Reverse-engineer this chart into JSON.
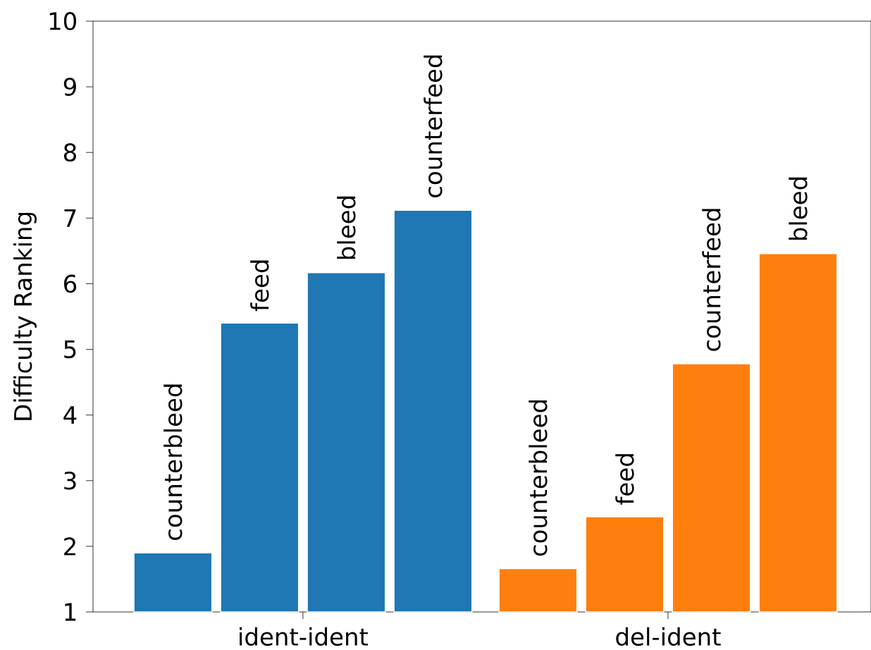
{
  "chart_data": {
    "type": "bar",
    "ylabel": "Difficulty Ranking",
    "categories": [
      "ident-ident",
      "del-ident"
    ],
    "series": [
      {
        "colors": [
          "#1f77b4",
          "#ff7f0e"
        ],
        "values": [
          1.9,
          1.66
        ],
        "value_labels": [
          "counterbleed",
          "counterbleed"
        ]
      },
      {
        "colors": [
          "#1f77b4",
          "#ff7f0e"
        ],
        "values": [
          5.4,
          2.45
        ],
        "value_labels": [
          "feed",
          "feed"
        ]
      },
      {
        "colors": [
          "#1f77b4",
          "#ff7f0e"
        ],
        "values": [
          6.17,
          4.78
        ],
        "value_labels": [
          "bleed",
          "counterfeed"
        ]
      },
      {
        "colors": [
          "#1f77b4",
          "#ff7f0e"
        ],
        "values": [
          7.12,
          6.46
        ],
        "value_labels": [
          "counterfeed",
          "bleed"
        ]
      }
    ],
    "ylim": [
      1,
      10
    ],
    "yticks": [
      1,
      2,
      3,
      4,
      5,
      6,
      7,
      8,
      9,
      10
    ],
    "grid": false
  }
}
